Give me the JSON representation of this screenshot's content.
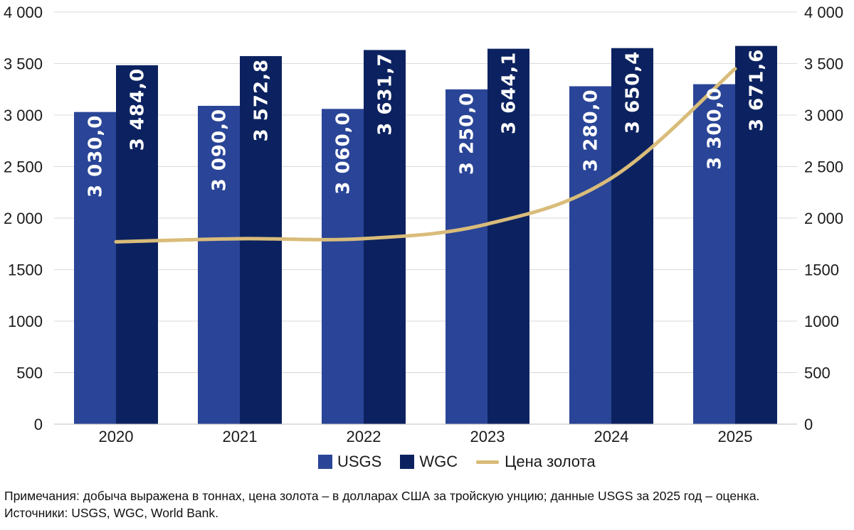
{
  "chart_data": {
    "type": "bar",
    "categories": [
      "2020",
      "2021",
      "2022",
      "2023",
      "2024",
      "2025"
    ],
    "series": [
      {
        "name": "USGS",
        "type": "bar",
        "axis": "left",
        "color": "#2a4597",
        "values": [
          3030.0,
          3090.0,
          3060.0,
          3250.0,
          3280.0,
          3300.0
        ],
        "labels": [
          "3 030,0",
          "3 090,0",
          "3 060,0",
          "3 250,0",
          "3 280,0",
          "3 300,0"
        ]
      },
      {
        "name": "WGC",
        "type": "bar",
        "axis": "left",
        "color": "#0c2260",
        "values": [
          3484.0,
          3572.8,
          3631.7,
          3644.1,
          3650.4,
          3671.6
        ],
        "labels": [
          "3 484,0",
          "3 572,8",
          "3 631,7",
          "3 644,1",
          "3 650,4",
          "3 671,6"
        ]
      },
      {
        "name": "Цена золота",
        "type": "line",
        "axis": "right",
        "color": "#d9bc7a",
        "values": [
          1770,
          1800,
          1801,
          1943,
          2388,
          3450
        ]
      }
    ],
    "ylim": [
      0,
      4000
    ],
    "y2lim": [
      0,
      4000
    ],
    "yticks": [
      "0",
      "500",
      "1000",
      "1500",
      "2 000",
      "2 500",
      "3 000",
      "3 500",
      "4 000"
    ],
    "y2ticks": [
      "0",
      "500",
      "1000",
      "1500",
      "2 000",
      "2 500",
      "3 000",
      "3 500",
      "4 000"
    ],
    "grid": true,
    "legend": "bottom"
  },
  "notes": {
    "line1": "Примечания: добыча выражена в тоннах, цена золота – в долларах США за тройскую унцию; данные USGS за 2025 год – оценка.",
    "line2": "Источники: USGS, WGC, World Bank."
  }
}
